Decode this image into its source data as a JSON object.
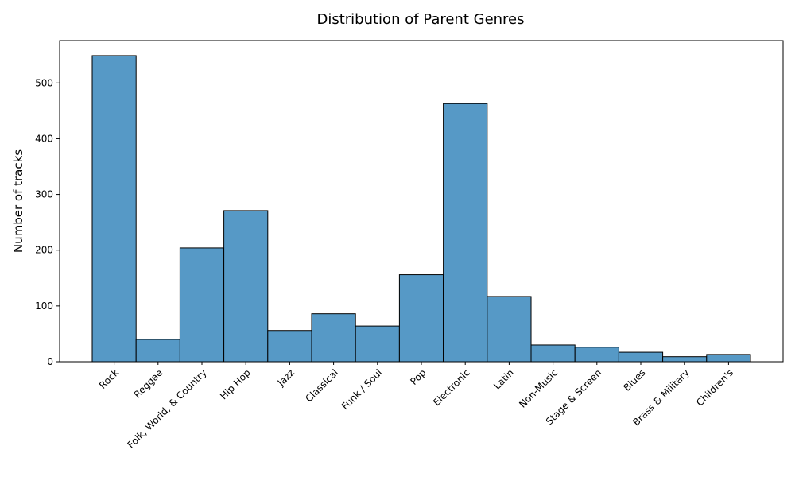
{
  "chart_data": {
    "type": "bar",
    "title": "Distribution of Parent Genres",
    "xlabel": "",
    "ylabel": "Number of tracks",
    "categories": [
      "Rock",
      "Reggae",
      "Folk, World, & Country",
      "Hip Hop",
      "Jazz",
      "Classical",
      "Funk / Soul",
      "Pop",
      "Electronic",
      "Latin",
      "Non-Music",
      "Stage & Screen",
      "Blues",
      "Brass & Military",
      "Children's"
    ],
    "values": [
      549,
      40,
      204,
      271,
      56,
      86,
      64,
      156,
      463,
      117,
      30,
      26,
      17,
      9,
      13
    ],
    "ylim": [
      0,
      576
    ],
    "yticks": [
      0,
      100,
      200,
      300,
      400,
      500
    ],
    "grid": false,
    "bar_color": "#5699c6",
    "edge_color": "#000000"
  }
}
